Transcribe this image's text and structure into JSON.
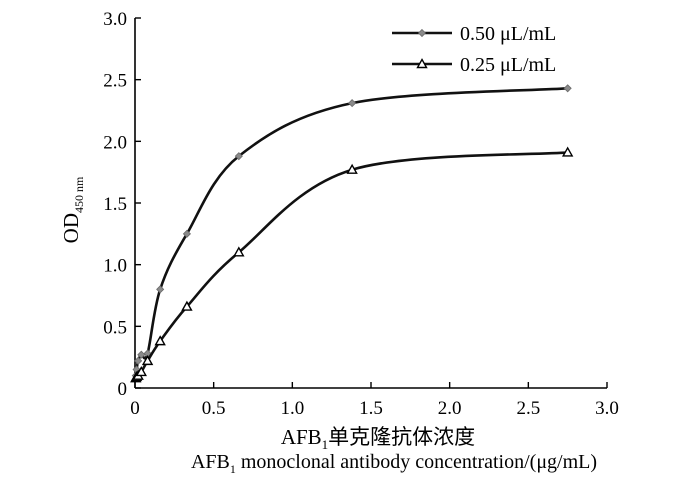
{
  "chart_data": {
    "type": "line",
    "title": "",
    "ylabel": {
      "main": "OD",
      "sub": "450 nm"
    },
    "xlabel_cn": {
      "pre": "AFB",
      "sub": "1",
      "post": "单克隆抗体浓度"
    },
    "xlabel_en": {
      "pre": "AFB",
      "sub": "1",
      "post": " monoclonal antibody concentration/(μg/mL)"
    },
    "xlim": [
      0,
      3.0
    ],
    "ylim": [
      0,
      3.0
    ],
    "xticks": [
      "0",
      "0.5",
      "1.0",
      "1.5",
      "2.0",
      "2.5",
      "3.0"
    ],
    "yticks": [
      "0",
      "0.5",
      "1.0",
      "1.5",
      "2.0",
      "2.5",
      "3.0"
    ],
    "grid": false,
    "legend_position": "top-right",
    "series": [
      {
        "name": "0.50 μL/mL",
        "marker": "diamond",
        "x": [
          0.005,
          0.01,
          0.02,
          0.04,
          0.08,
          0.16,
          0.33,
          0.66,
          1.38,
          2.75
        ],
        "y": [
          0.1,
          0.15,
          0.22,
          0.27,
          0.28,
          0.8,
          1.25,
          1.88,
          2.31,
          2.43
        ]
      },
      {
        "name": "0.25 μL/mL",
        "marker": "triangle",
        "x": [
          0.005,
          0.01,
          0.02,
          0.04,
          0.08,
          0.16,
          0.33,
          0.66,
          1.38,
          2.75
        ],
        "y": [
          0.08,
          0.09,
          0.1,
          0.13,
          0.22,
          0.38,
          0.66,
          1.1,
          1.77,
          1.91
        ]
      }
    ]
  }
}
